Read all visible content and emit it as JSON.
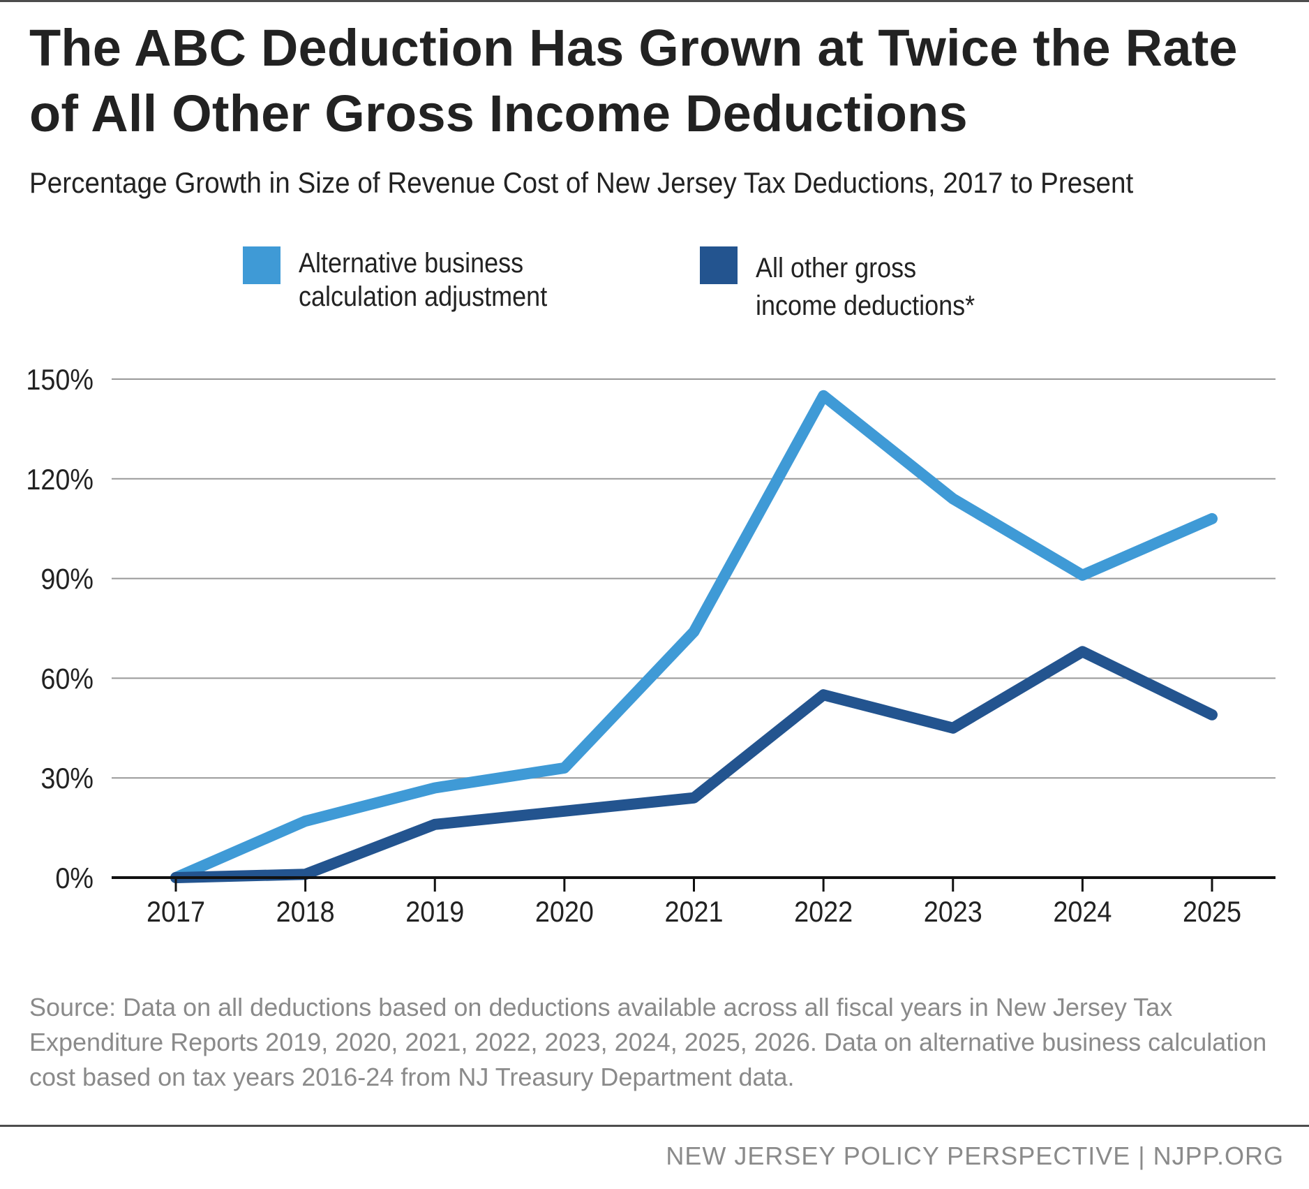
{
  "header": {
    "title": "The ABC Deduction Has Grown at Twice the Rate of All Other Gross Income Deductions",
    "subtitle": "Percentage Growth in Size of Revenue Cost of New Jersey Tax Deductions, 2017 to Present"
  },
  "colors": {
    "abc": "#3f9ad6",
    "other": "#23548f",
    "grid": "#999999",
    "axis": "#111111"
  },
  "chart_data": {
    "type": "line",
    "title": "The ABC Deduction Has Grown at Twice the Rate of All Other Gross Income Deductions",
    "subtitle": "Percentage Growth in Size of Revenue Cost of New Jersey Tax Deductions, 2017 to Present",
    "categories": [
      "2017",
      "2018",
      "2019",
      "2020",
      "2021",
      "2022",
      "2023",
      "2024",
      "2025"
    ],
    "series": [
      {
        "name": "Alternative business\ncalculation adjustment",
        "color": "#3f9ad6",
        "values": [
          0,
          17,
          27,
          33,
          74,
          145,
          114,
          91,
          108
        ]
      },
      {
        "name": "All other gross\nincome deductions*",
        "color": "#23548f",
        "values": [
          0,
          1,
          16,
          20,
          24,
          55,
          45,
          68,
          49
        ]
      }
    ],
    "y_ticks": [
      "0%",
      "30%",
      "60%",
      "90%",
      "120%",
      "150%"
    ],
    "y_tick_values": [
      0,
      30,
      60,
      90,
      120,
      150
    ],
    "ylim": [
      0,
      150
    ],
    "grid": true,
    "legend": "top"
  },
  "source": "Source: Data on all deductions based on deductions available across all fiscal years in New Jersey Tax Expenditure Reports 2019, 2020, 2021, 2022, 2023, 2024, 2025, 2026. Data on alternative business calculation cost based on tax years 2016-24 from NJ Treasury Department data.",
  "footer": "NEW JERSEY POLICY PERSPECTIVE | NJPP.ORG"
}
